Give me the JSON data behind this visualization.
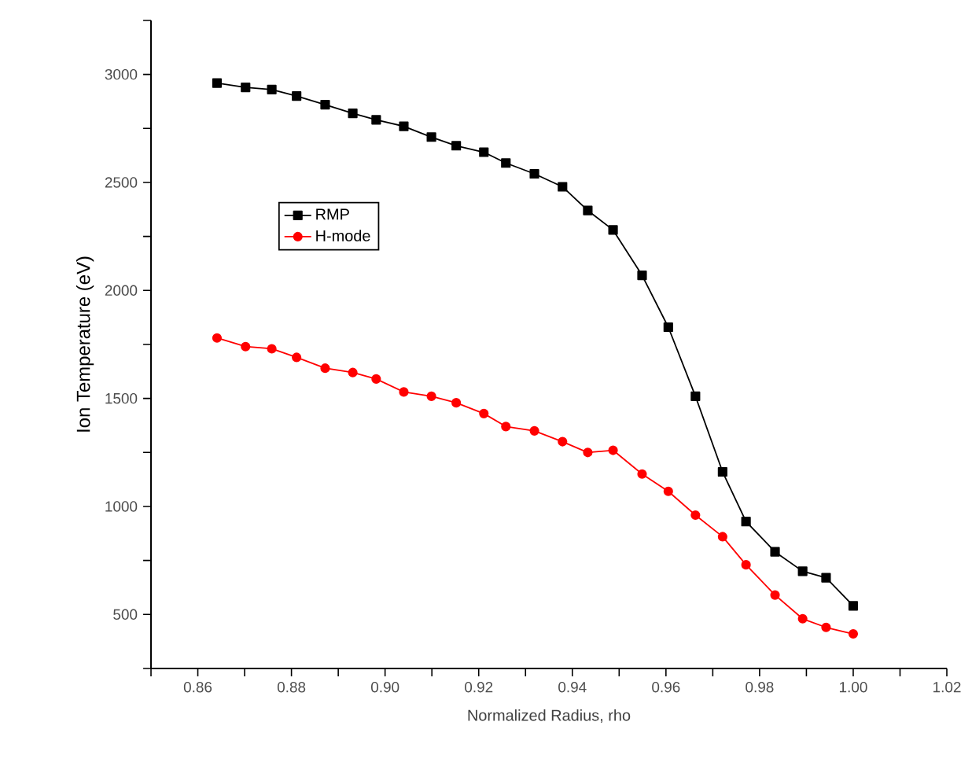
{
  "chart_data": {
    "type": "line",
    "xlabel": "Normalized Radius, rho",
    "ylabel": "Ion Temperature (eV)",
    "xlim": [
      0.85,
      1.02
    ],
    "ylim": [
      250,
      3250
    ],
    "xticks": [
      0.86,
      0.88,
      {
        "value": 0.9,
        "label": "0.90"
      },
      0.92,
      0.94,
      0.96,
      0.98,
      {
        "value": 1,
        "label": "1.00"
      },
      1.02,
      {
        "value": 0.85,
        "label": null
      },
      {
        "value": 0.87,
        "label": null
      },
      {
        "value": 0.89,
        "label": null
      },
      {
        "value": 0.91,
        "label": null
      },
      {
        "value": 0.93,
        "label": null
      },
      {
        "value": 0.95,
        "label": null
      },
      {
        "value": 0.97,
        "label": null
      },
      {
        "value": 0.99,
        "label": null
      },
      {
        "value": 1.01,
        "label": null
      }
    ],
    "yticks": [
      500,
      1000,
      1500,
      2000,
      2500,
      3000,
      {
        "value": 250,
        "label": null
      },
      {
        "value": 750,
        "label": null
      },
      {
        "value": 1250,
        "label": null
      },
      {
        "value": 1750,
        "label": null
      },
      {
        "value": 2250,
        "label": null
      },
      {
        "value": 2750,
        "label": null
      },
      {
        "value": 3250,
        "label": null
      }
    ],
    "legend": "top left",
    "grid": false,
    "series": [
      {
        "name": "RMP",
        "color": "#000000",
        "marker": "square",
        "x": [
          0.8641,
          0.8702,
          0.8758,
          0.8811,
          0.8872,
          0.8931,
          0.8981,
          0.904,
          0.9099,
          0.9152,
          0.9211,
          0.9258,
          0.9319,
          0.9379,
          0.9433,
          0.9487,
          0.9549,
          0.9605,
          0.9663,
          0.9721,
          0.9771,
          0.9833,
          0.9892,
          0.9942,
          1.0
        ],
        "values": [
          2960,
          2940,
          2930,
          2900,
          2860,
          2820,
          2790,
          2760,
          2710,
          2670,
          2640,
          2590,
          2540,
          2480,
          2370,
          2280,
          2070,
          1830,
          1510,
          1160,
          930,
          790,
          700,
          670,
          540
        ]
      },
      {
        "name": "H-mode",
        "color": "#ff0000",
        "marker": "circle",
        "x": [
          0.8641,
          0.8702,
          0.8758,
          0.8811,
          0.8872,
          0.8931,
          0.8981,
          0.904,
          0.9099,
          0.9152,
          0.9211,
          0.9258,
          0.9319,
          0.9379,
          0.9433,
          0.9487,
          0.9549,
          0.9605,
          0.9663,
          0.9721,
          0.9771,
          0.9833,
          0.9892,
          0.9942,
          1.0
        ],
        "values": [
          1780,
          1740,
          1730,
          1690,
          1640,
          1620,
          1590,
          1530,
          1510,
          1480,
          1430,
          1370,
          1350,
          1300,
          1250,
          1260,
          1150,
          1070,
          960,
          860,
          730,
          590,
          480,
          440,
          410
        ]
      }
    ]
  }
}
